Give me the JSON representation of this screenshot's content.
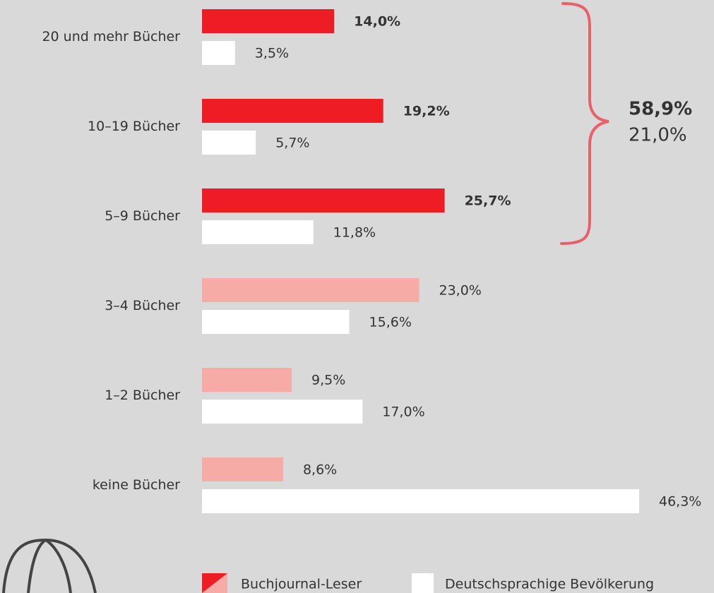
{
  "chart_data": {
    "type": "hbar",
    "categories": [
      "20 und mehr Bücher",
      "10–19 Bücher",
      "5–9 Bücher",
      "3–4 Bücher",
      "1–2 Bücher",
      "keine Bücher"
    ],
    "series": [
      {
        "name": "Buchjournal-Leser",
        "colors": [
          "#ee1c25",
          "#ee1c25",
          "#ee1c25",
          "#f7aba6",
          "#f7aba6",
          "#f7aba6"
        ],
        "bold": [
          true,
          true,
          true,
          false,
          false,
          false
        ],
        "values": [
          14.0,
          19.2,
          25.7,
          23.0,
          9.5,
          8.6
        ],
        "value_labels": [
          "14,0%",
          "19,2%",
          "25,7%",
          "23,0%",
          "9,5%",
          "8,6%"
        ]
      },
      {
        "name": "Deutschsprachige Bevölkerung",
        "color": "#ffffff",
        "values": [
          3.5,
          5.7,
          11.8,
          15.6,
          17.0,
          46.3
        ],
        "value_labels": [
          "3,5%",
          "5,7%",
          "11,8%",
          "15,6%",
          "17,0%",
          "46,3%"
        ]
      }
    ],
    "bracket": {
      "labels": [
        "58,9%",
        "21,0%"
      ],
      "colors": [
        "#ee1c25",
        "#333333"
      ],
      "brace_color": "#e8606a"
    }
  }
}
